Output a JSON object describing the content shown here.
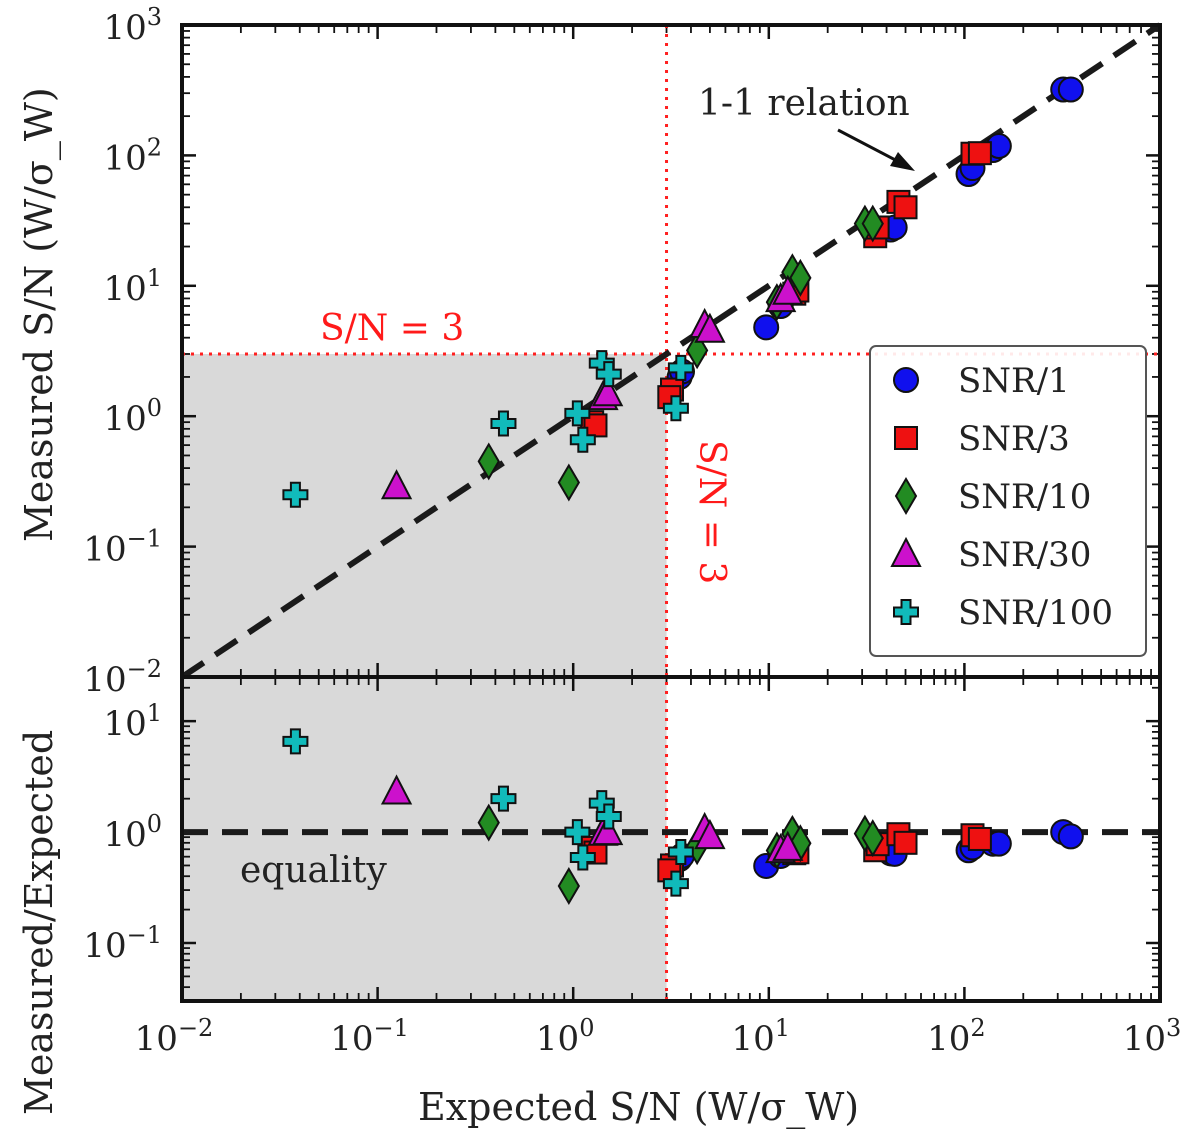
{
  "chart_data": {
    "type": "scatter",
    "x_axis": {
      "label": "Expected S/N (W/σ_W)",
      "scale": "log",
      "range": [
        0.01,
        1000
      ],
      "ticks": [
        {
          "base": "10",
          "exp": "−2"
        },
        {
          "base": "10",
          "exp": "−1"
        },
        {
          "base": "10",
          "exp": "0"
        },
        {
          "base": "10",
          "exp": "1"
        },
        {
          "base": "10",
          "exp": "2"
        },
        {
          "base": "10",
          "exp": "3"
        }
      ]
    },
    "top_panel": {
      "ylabel": "Measured S/N (W/σ_W)",
      "scale": "log",
      "ylim": [
        0.01,
        1000
      ],
      "ticks": [
        {
          "base": "10",
          "exp": "−2"
        },
        {
          "base": "10",
          "exp": "−1"
        },
        {
          "base": "10",
          "exp": "0"
        },
        {
          "base": "10",
          "exp": "1"
        },
        {
          "base": "10",
          "exp": "2"
        },
        {
          "base": "10",
          "exp": "3"
        }
      ],
      "annotations": {
        "relation": "1-1 relation",
        "hline": "S/N = 3",
        "vline": "S/N = 3"
      },
      "threshold": 3
    },
    "bottom_panel": {
      "ylabel": "Measured/Expected",
      "scale": "log",
      "ylim": [
        0.03,
        25
      ],
      "ticks": [
        {
          "base": "10",
          "exp": "−1"
        },
        {
          "base": "10",
          "exp": "0"
        },
        {
          "base": "10",
          "exp": "1"
        }
      ],
      "annotations": {
        "equality": "equality"
      }
    },
    "series": [
      {
        "name": "SNR/1",
        "marker": "circle",
        "color": "#1010ee",
        "points": [
          [
            3.5,
            2.0
          ],
          [
            3.6,
            2.2
          ],
          [
            9.7,
            4.8
          ],
          [
            11.5,
            7.0
          ],
          [
            42,
            27
          ],
          [
            44,
            28
          ],
          [
            105,
            72
          ],
          [
            110,
            80
          ],
          [
            140,
            110
          ],
          [
            150,
            118
          ],
          [
            320,
            320
          ],
          [
            350,
            320
          ]
        ]
      },
      {
        "name": "SNR/3",
        "marker": "square",
        "color": "#ee1111",
        "points": [
          [
            1.25,
            0.9
          ],
          [
            1.3,
            0.85
          ],
          [
            3.2,
            1.6
          ],
          [
            3.1,
            1.4
          ],
          [
            13.5,
            8.7
          ],
          [
            14,
            9.2
          ],
          [
            35,
            24
          ],
          [
            36,
            28
          ],
          [
            46,
            44
          ],
          [
            50,
            40
          ],
          [
            110,
            103
          ],
          [
            120,
            104
          ]
        ]
      },
      {
        "name": "SNR/10",
        "marker": "diamond",
        "color": "#228b22",
        "points": [
          [
            0.37,
            0.45
          ],
          [
            0.95,
            0.31
          ],
          [
            4.3,
            3.2
          ],
          [
            11,
            7.5
          ],
          [
            13.2,
            12.7
          ],
          [
            14.5,
            11.5
          ],
          [
            31,
            30
          ],
          [
            34,
            30
          ]
        ]
      },
      {
        "name": "SNR/30",
        "marker": "triangle",
        "color": "#cc11cc",
        "points": [
          [
            0.125,
            0.29
          ],
          [
            1.42,
            1.4
          ],
          [
            1.5,
            1.5
          ],
          [
            4.7,
            5.0
          ],
          [
            5.0,
            4.6
          ],
          [
            11.5,
            7.9
          ],
          [
            12.5,
            9.0
          ]
        ]
      },
      {
        "name": "SNR/100",
        "marker": "plus",
        "color": "#11bbbb",
        "points": [
          [
            0.038,
            0.25
          ],
          [
            0.44,
            0.88
          ],
          [
            1.05,
            1.05
          ],
          [
            1.12,
            0.66
          ],
          [
            1.4,
            2.55
          ],
          [
            1.52,
            2.1
          ],
          [
            3.35,
            1.15
          ],
          [
            3.55,
            2.35
          ]
        ]
      }
    ]
  }
}
